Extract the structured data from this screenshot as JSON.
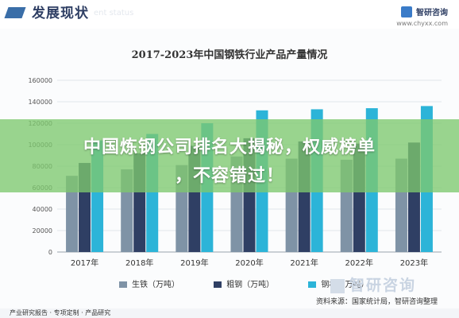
{
  "header": {
    "title": "发展现状",
    "subtitle": "ent status",
    "brand_name": "智研咨询",
    "brand_url": "www.chyxx.com"
  },
  "banner": {
    "line1": "中国炼钢公司排名大揭秘，权威榜单",
    "line2": "，不容错过！"
  },
  "watermark": "智研咨询",
  "source": "资料来源：国家统计局，智研咨询整理",
  "footer": "产业研究报告 · 专项定制 · 产品研究",
  "colors": {
    "pig_iron": "#7f93a6",
    "crude_steel": "#2f3f64",
    "steel": "#2cb4d8",
    "banner": "#7ec86e"
  },
  "chart_data": {
    "type": "bar",
    "title": "2017-2023年中国钢铁行业产品产量情况",
    "categories": [
      "2017年",
      "2018年",
      "2019年",
      "2020年",
      "2021年",
      "2022年",
      "2023年"
    ],
    "yticks": [
      "0",
      "20000",
      "40000",
      "60000",
      "80000",
      "100000",
      "120000",
      "140000",
      "160000"
    ],
    "ylim": [
      0,
      160000
    ],
    "series": [
      {
        "name": "生铁（万吨）",
        "values": [
          71000,
          77000,
          81000,
          89000,
          87000,
          86000,
          87000
        ]
      },
      {
        "name": "粗钢（万吨）",
        "values": [
          83000,
          92000,
          99000,
          106000,
          103000,
          101000,
          102000
        ]
      },
      {
        "name": "钢材（万吨）",
        "values": [
          104000,
          110000,
          120000,
          132000,
          133000,
          134000,
          136000
        ]
      }
    ],
    "legend_position": "bottom",
    "grid": true
  }
}
